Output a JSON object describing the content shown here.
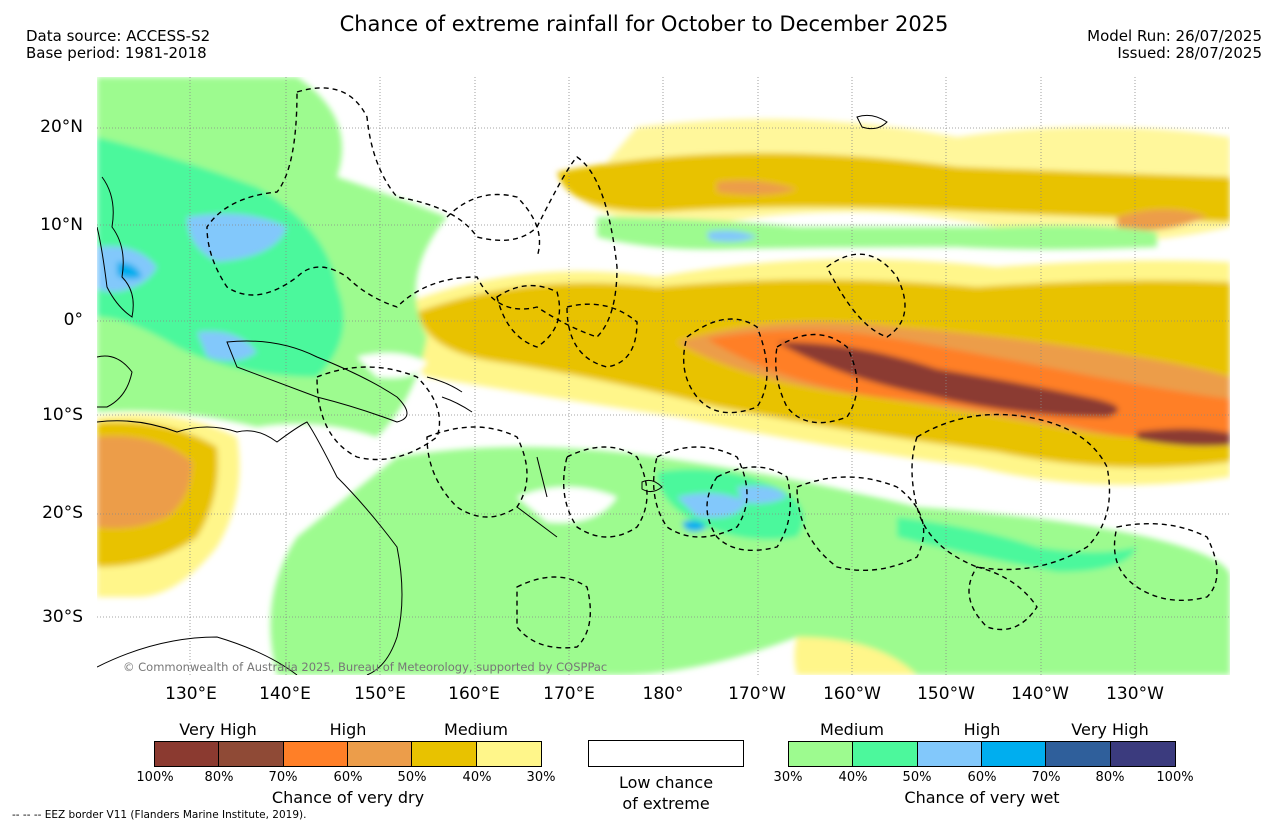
{
  "header": {
    "title": "Chance of extreme rainfall for October to December 2025",
    "data_source": "Data source: ACCESS-S2",
    "base_period": "Base period: 1981-2018",
    "model_run": "Model Run: 26/07/2025",
    "issued": "Issued: 28/07/2025"
  },
  "axes": {
    "lat_labels": [
      "20°N",
      "10°N",
      "0°",
      "10°S",
      "20°S",
      "30°S"
    ],
    "lon_labels": [
      "130°E",
      "140°E",
      "150°E",
      "160°E",
      "170°E",
      "180°",
      "170°W",
      "160°W",
      "150°W",
      "140°W",
      "130°W"
    ]
  },
  "map": {
    "credit": "© Commonwealth of Australia 2025, Bureau of Meteorology, supported by COSPPac"
  },
  "legend_dry": {
    "categories": [
      "Very High",
      "High",
      "Medium"
    ],
    "percentages": [
      "100%",
      "80%",
      "70%",
      "60%",
      "50%",
      "40%",
      "30%"
    ],
    "colors": [
      "#8b3a30",
      "#8f4a36",
      "#ff7f27",
      "#ec9d4a",
      "#e8c200",
      "#fff68a"
    ],
    "label": "Chance of very dry"
  },
  "legend_low": {
    "label_line1": "Low chance",
    "label_line2": "of extreme"
  },
  "legend_wet": {
    "categories": [
      "Medium",
      "High",
      "Very High"
    ],
    "percentages": [
      "30%",
      "40%",
      "50%",
      "60%",
      "70%",
      "80%",
      "100%"
    ],
    "colors": [
      "#9dfb8f",
      "#4cf89c",
      "#82c8fb",
      "#00aeef",
      "#2f5f9b",
      "#3b3b7e"
    ],
    "label": "Chance of very wet"
  },
  "footer": {
    "eez_note": "-- -- -- EEZ border V11 (Flanders Marine Institute, 2019)."
  }
}
